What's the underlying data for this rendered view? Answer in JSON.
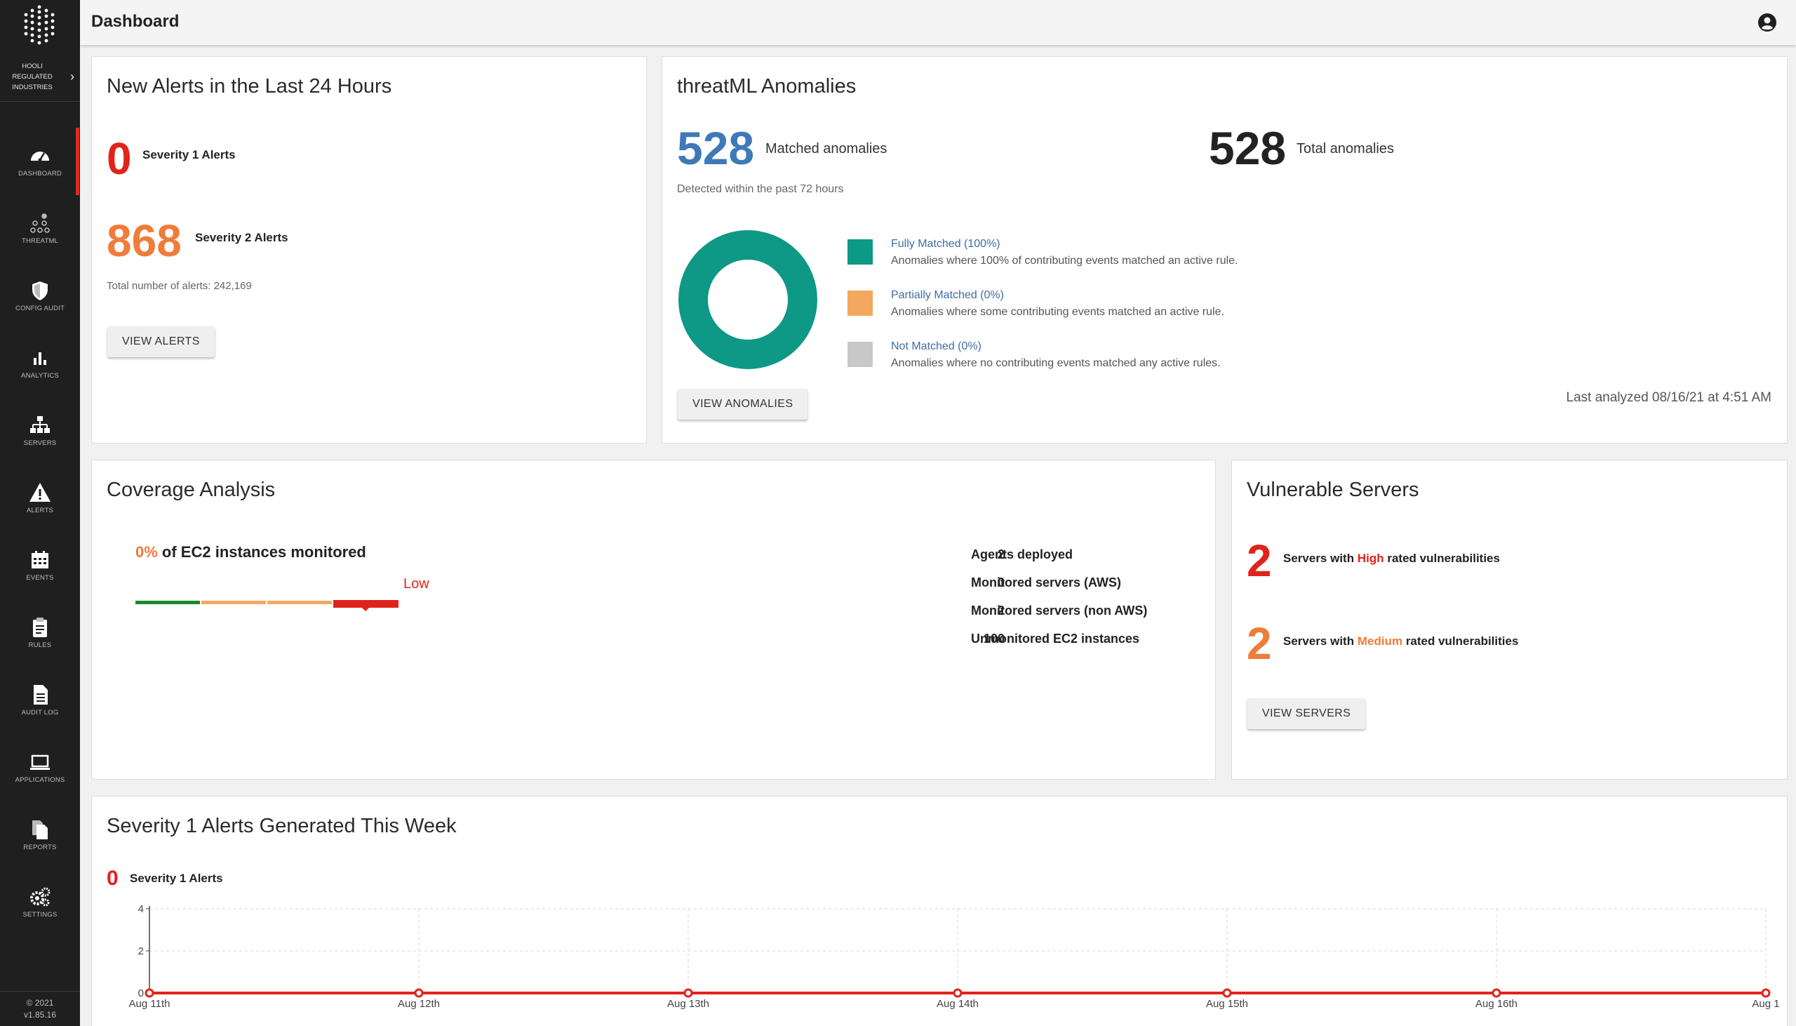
{
  "sidebar": {
    "org_name_lines": [
      "HOOLI",
      "REGULATED",
      "INDUSTRIES"
    ],
    "items": [
      {
        "label": "DASHBOARD",
        "icon": "dashboard-gauge-icon",
        "active": true
      },
      {
        "label": "THREATML",
        "icon": "threatml-nodes-icon",
        "active": false
      },
      {
        "label": "CONFIG AUDIT",
        "icon": "shield-icon",
        "active": false
      },
      {
        "label": "ANALYTICS",
        "icon": "bar-chart-icon",
        "active": false
      },
      {
        "label": "SERVERS",
        "icon": "server-hierarchy-icon",
        "active": false
      },
      {
        "label": "ALERTS",
        "icon": "warning-triangle-icon",
        "active": false
      },
      {
        "label": "EVENTS",
        "icon": "calendar-icon",
        "active": false
      },
      {
        "label": "RULES",
        "icon": "clipboard-icon",
        "active": false
      },
      {
        "label": "AUDIT LOG",
        "icon": "document-icon",
        "active": false
      },
      {
        "label": "APPLICATIONS",
        "icon": "laptop-icon",
        "active": false
      },
      {
        "label": "REPORTS",
        "icon": "copy-documents-icon",
        "active": false
      },
      {
        "label": "SETTINGS",
        "icon": "gears-icon",
        "active": false
      }
    ],
    "footer_year": "© 2021",
    "footer_version": "v1.85.16"
  },
  "header": {
    "title": "Dashboard",
    "user_icon": "user-circle-icon"
  },
  "alerts_card": {
    "title": "New Alerts in the Last 24 Hours",
    "sev1_value": "0",
    "sev1_label": "Severity 1 Alerts",
    "sev2_value": "868",
    "sev2_label": "Severity 2 Alerts",
    "total_text": "Total number of alerts: 242,169",
    "button": "VIEW ALERTS"
  },
  "anomalies_card": {
    "title": "threatML Anomalies",
    "matched_value": "528",
    "matched_label": "Matched anomalies",
    "total_value": "528",
    "total_label": "Total anomalies",
    "detected_text": "Detected within the past 72 hours",
    "legend": [
      {
        "title": "Fully Matched (100%)",
        "desc": "Anomalies where 100% of contributing events matched an active rule.",
        "color": "#0e9886",
        "percent": 100
      },
      {
        "title": "Partially Matched (0%)",
        "desc": "Anomalies where some contributing events matched an active rule.",
        "color": "#f4a85e",
        "percent": 0
      },
      {
        "title": "Not Matched (0%)",
        "desc": "Anomalies where no contributing events matched any active rules.",
        "color": "#c8c8c8",
        "percent": 0
      }
    ],
    "button": "VIEW ANOMALIES",
    "last_analyzed": "Last analyzed 08/16/21 at 4:51 AM"
  },
  "coverage_card": {
    "title": "Coverage Analysis",
    "percent": "0%",
    "percent_label": "of EC2 instances monitored",
    "level_label": "Low",
    "coverage_fraction": 0,
    "stats": [
      {
        "value": "2",
        "label": "Agents deployed"
      },
      {
        "value": "0",
        "label": "Monitored servers (AWS)"
      },
      {
        "value": "2",
        "label": "Monitored servers (non AWS)"
      },
      {
        "value": "100",
        "label": "Unmonitored EC2 instances"
      }
    ]
  },
  "servers_card": {
    "title": "Vulnerable Servers",
    "high_value": "2",
    "high_prefix": "Servers with",
    "high_word": "High",
    "high_suffix": "rated vulnerabilities",
    "medium_value": "2",
    "medium_prefix": "Servers with",
    "medium_word": "Medium",
    "medium_suffix": "rated vulnerabilities",
    "button": "VIEW SERVERS"
  },
  "week_card": {
    "title": "Severity 1 Alerts Generated This Week",
    "sev1_value": "0",
    "sev1_label": "Severity 1 Alerts"
  },
  "chart_data": {
    "type": "line",
    "categories": [
      "Aug 11th",
      "Aug 12th",
      "Aug 13th",
      "Aug 14th",
      "Aug 15th",
      "Aug 16th",
      "Aug 1"
    ],
    "series": [
      {
        "values": [
          0,
          0,
          0,
          0,
          0,
          0,
          0
        ],
        "color": "#e0241b"
      }
    ],
    "ylim": [
      0,
      4
    ],
    "yticks": [
      0,
      2,
      4
    ],
    "grid": true
  },
  "colors": {
    "red": "#e0241b",
    "orange": "#f07c3a",
    "blue": "#3e79b8",
    "teal": "#0e9886",
    "green": "#198a2c"
  }
}
